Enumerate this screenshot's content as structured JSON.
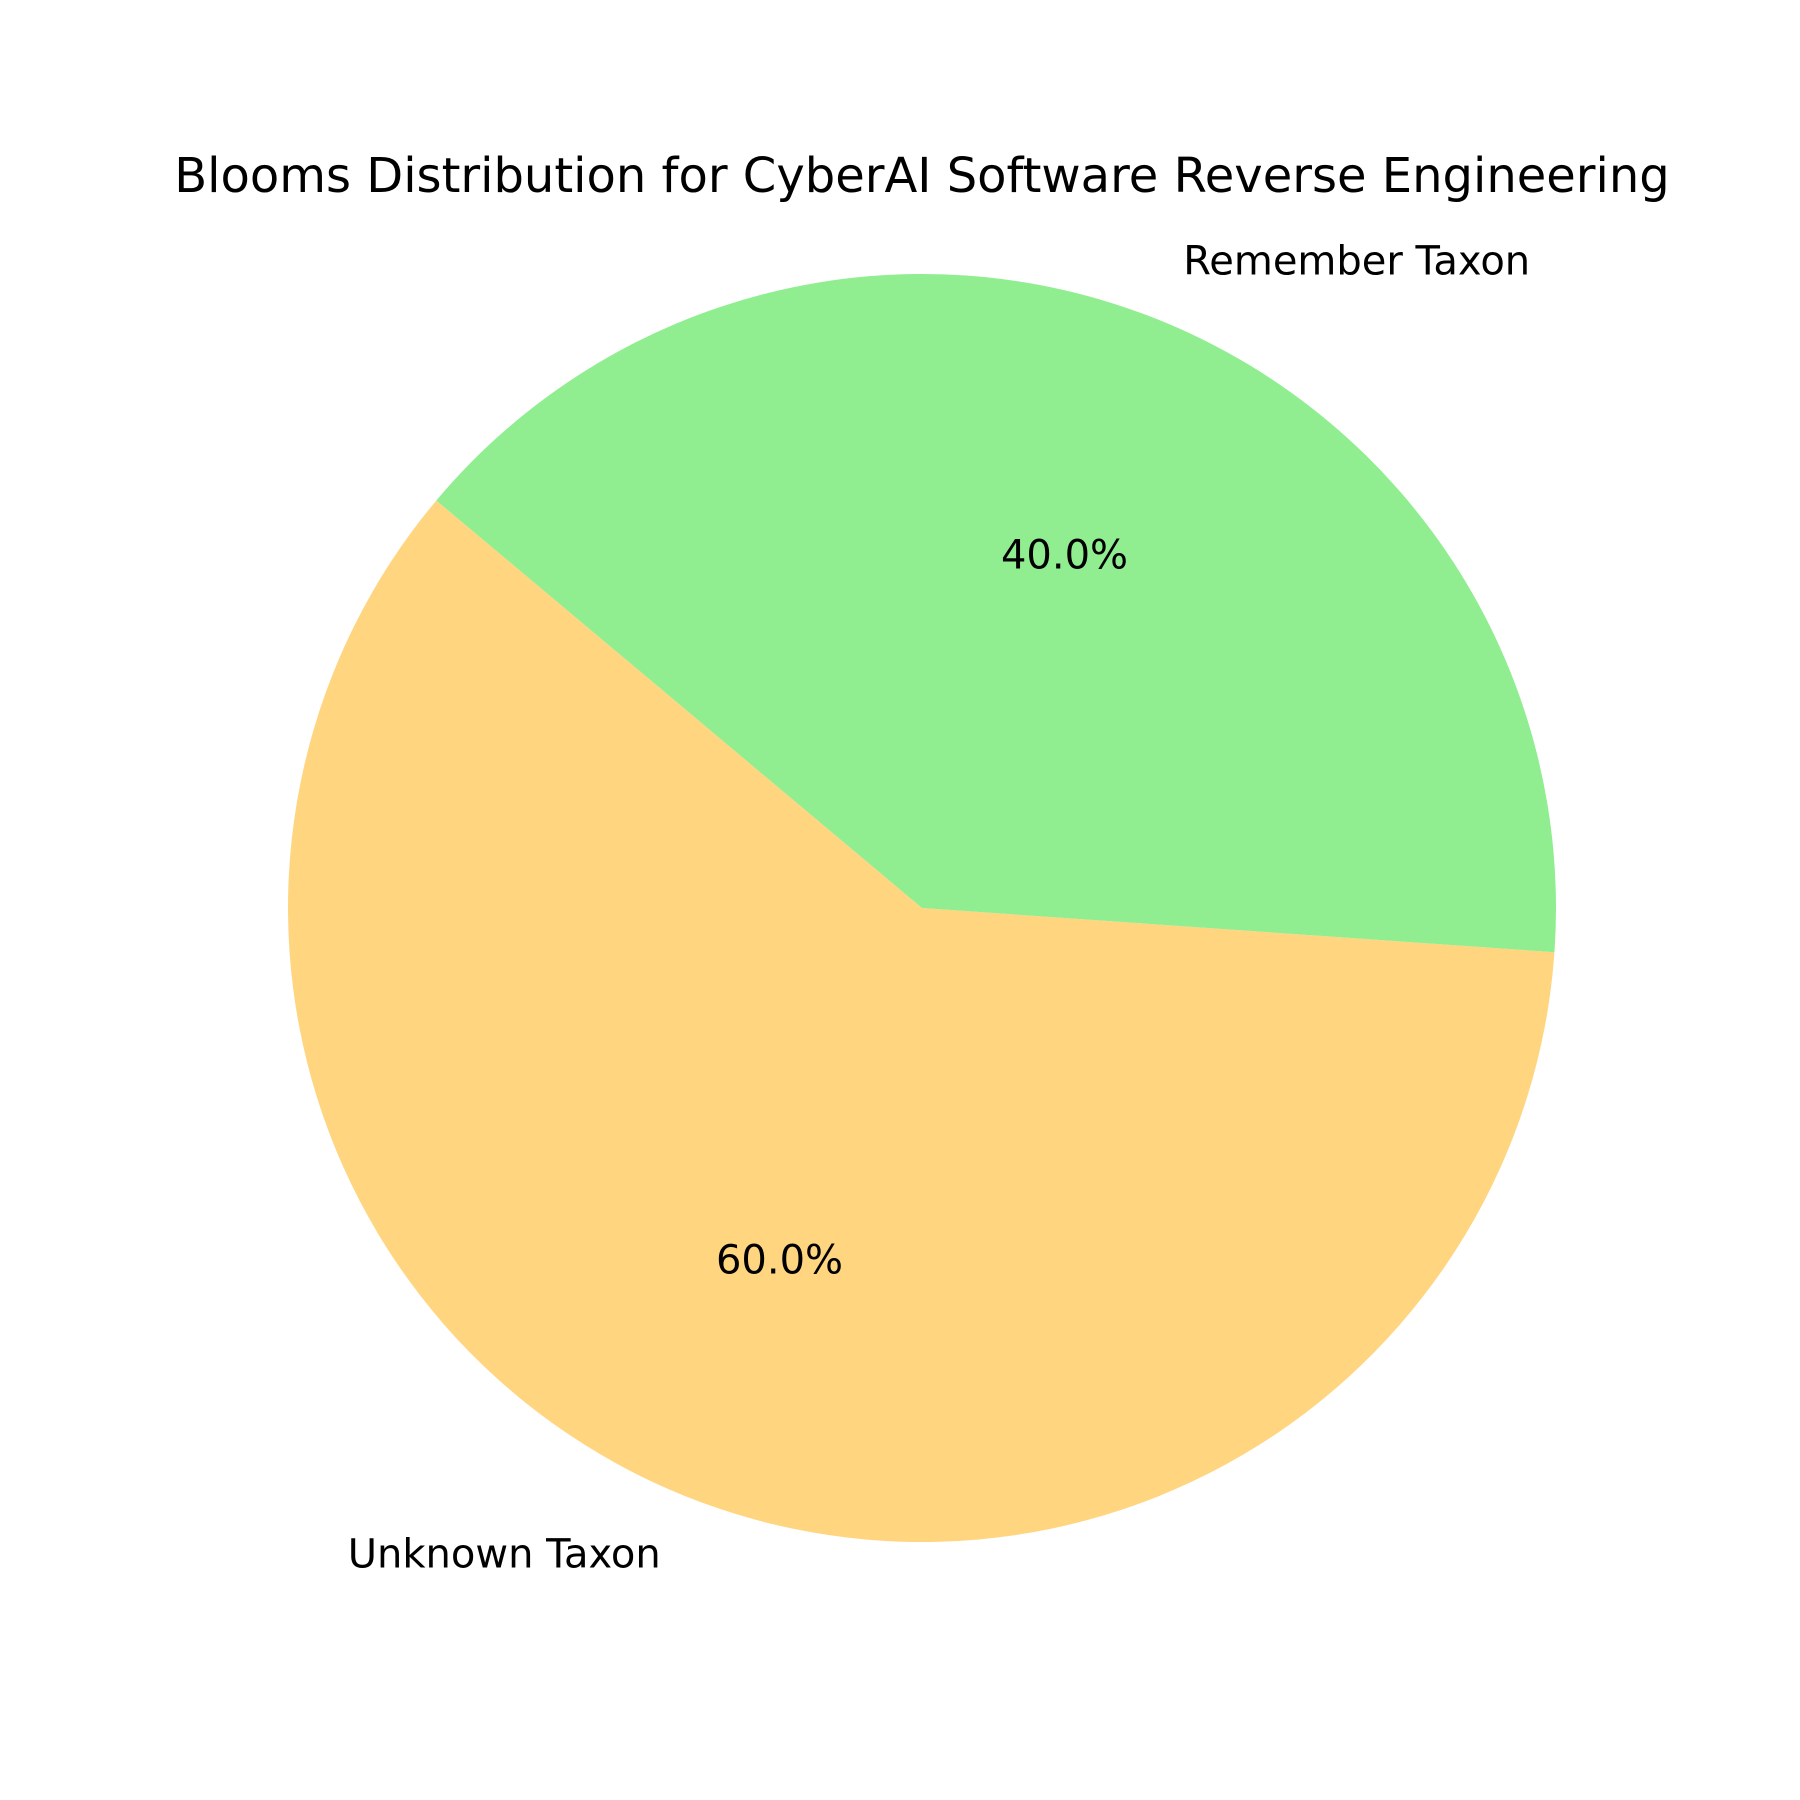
{
  "chart_data": {
    "type": "pie",
    "title": "Blooms Distribution for CyberAI Software Reverse Engineering",
    "slices": [
      {
        "label": "Unknown Taxon",
        "value": 60.0,
        "percent_label": "60.0%",
        "color": "#ffd580"
      },
      {
        "label": "Remember Taxon",
        "value": 40.0,
        "percent_label": "40.0%",
        "color": "#90ee90"
      }
    ],
    "start_angle_deg": 140,
    "direction": "counterclockwise"
  }
}
